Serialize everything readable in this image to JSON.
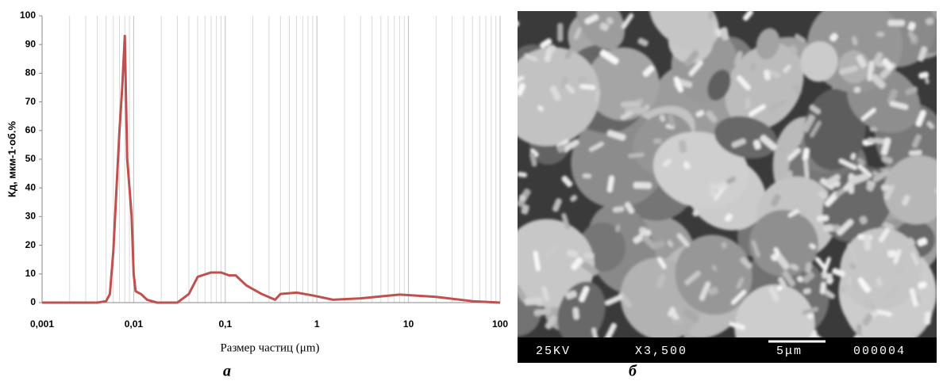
{
  "chart_data": {
    "type": "line",
    "y_label": "Кд, мкм-1·об.%",
    "x_label": "Размер частиц  (μm)",
    "log_x": true,
    "xlim": [
      0.001,
      100
    ],
    "xticks": [
      {
        "value": 0.001,
        "label": "0,001"
      },
      {
        "value": 0.01,
        "label": "0,01"
      },
      {
        "value": 0.1,
        "label": "0,1"
      },
      1,
      10,
      100
    ],
    "ylim": [
      0,
      100
    ],
    "yticks": [
      0,
      10,
      20,
      30,
      40,
      50,
      60,
      70,
      80,
      90,
      100
    ],
    "grid": "x",
    "x": [
      0.001,
      0.004,
      0.005,
      0.0055,
      0.006,
      0.0065,
      0.007,
      0.0075,
      0.008,
      0.0085,
      0.009,
      0.0095,
      0.01,
      0.0105,
      0.012,
      0.014,
      0.018,
      0.03,
      0.04,
      0.05,
      0.07,
      0.09,
      0.11,
      0.13,
      0.17,
      0.25,
      0.35,
      0.4,
      0.6,
      0.9,
      1.5,
      3,
      8,
      20,
      50,
      100
    ],
    "series": [
      {
        "color": "#c0504d",
        "values": [
          0,
          0,
          0.5,
          3,
          18,
          40,
          60,
          75,
          93,
          50,
          40,
          30,
          10,
          4,
          3,
          1,
          0,
          0,
          3,
          9,
          10.5,
          10.5,
          9.5,
          9.5,
          6,
          3,
          1,
          3,
          3.5,
          2.5,
          1,
          1.5,
          2.8,
          2,
          0.5,
          0
        ]
      }
    ]
  },
  "micrograph": {
    "voltage": "25KV",
    "magnification": "X3,500",
    "scale": "5μm",
    "number": "000004"
  },
  "panels": {
    "a": "а",
    "b": "б"
  }
}
